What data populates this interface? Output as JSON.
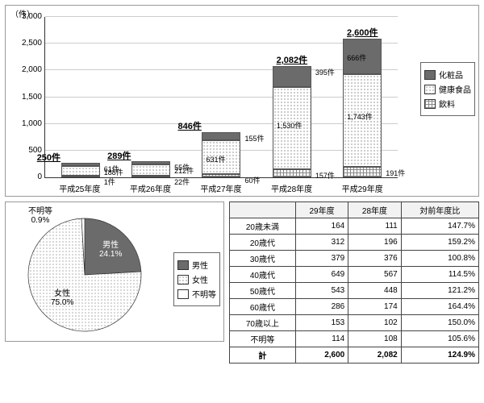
{
  "bar_chart": {
    "type": "stacked-bar",
    "y_unit_label": "（件）",
    "ylim": [
      0,
      3000
    ],
    "ytick_step": 500,
    "yticks": [
      "0",
      "500",
      "1,000",
      "1,500",
      "2,000",
      "2,500",
      "3,000"
    ],
    "categories": [
      "平成25年度",
      "平成26年度",
      "平成27年度",
      "平成28年度",
      "平成29年度"
    ],
    "series": [
      {
        "key": "drink",
        "label": "飲料",
        "fill": "f-drink"
      },
      {
        "key": "health",
        "label": "健康食品",
        "fill": "f-health"
      },
      {
        "key": "cosme",
        "label": "化粧品",
        "fill": "f-cosme"
      }
    ],
    "bars": [
      {
        "total": "250件",
        "total_side": "left",
        "drink": {
          "v": 1,
          "lbl": "1件"
        },
        "health": {
          "v": 188,
          "lbl": "188件"
        },
        "cosme": {
          "v": 61,
          "lbl": "61件"
        }
      },
      {
        "total": "289件",
        "total_side": "left",
        "drink": {
          "v": 22,
          "lbl": "22件"
        },
        "health": {
          "v": 212,
          "lbl": "212件"
        },
        "cosme": {
          "v": 55,
          "lbl": "55件"
        }
      },
      {
        "total": "846件",
        "total_side": "left",
        "drink": {
          "v": 60,
          "lbl": "60件"
        },
        "health": {
          "v": 631,
          "lbl": "631件"
        },
        "cosme": {
          "v": 155,
          "lbl": "155件"
        }
      },
      {
        "total": "2,082件",
        "total_side": "center",
        "drink": {
          "v": 157,
          "lbl": "157件"
        },
        "health": {
          "v": 1530,
          "lbl": "1,530件"
        },
        "cosme": {
          "v": 395,
          "lbl": "395件"
        }
      },
      {
        "total": "2,600件",
        "total_side": "center",
        "drink": {
          "v": 191,
          "lbl": "191件"
        },
        "health": {
          "v": 1743,
          "lbl": "1,743件"
        },
        "cosme": {
          "v": 666,
          "lbl": "666件"
        }
      }
    ],
    "legend_order": [
      "cosme",
      "health",
      "drink"
    ]
  },
  "pie_chart": {
    "type": "pie",
    "slices": [
      {
        "key": "male",
        "label": "男性",
        "pct": "24.1%",
        "value": 24.1,
        "fill": "#6b6b6b",
        "text_color": "#ffffff"
      },
      {
        "key": "female",
        "label": "女性",
        "pct": "75.0%",
        "value": 75.0,
        "fill": "dots",
        "text_color": "#000000"
      },
      {
        "key": "unknown",
        "label": "不明等",
        "pct": "0.9%",
        "value": 0.9,
        "fill": "#ffffff",
        "text_color": "#000000"
      }
    ],
    "legend": [
      "男性",
      "女性",
      "不明等"
    ]
  },
  "table": {
    "columns": [
      "",
      "29年度",
      "28年度",
      "対前年度比"
    ],
    "rows": [
      [
        "20歳未満",
        "164",
        "111",
        "147.7%"
      ],
      [
        "20歳代",
        "312",
        "196",
        "159.2%"
      ],
      [
        "30歳代",
        "379",
        "376",
        "100.8%"
      ],
      [
        "40歳代",
        "649",
        "567",
        "114.5%"
      ],
      [
        "50歳代",
        "543",
        "448",
        "121.2%"
      ],
      [
        "60歳代",
        "286",
        "174",
        "164.4%"
      ],
      [
        "70歳以上",
        "153",
        "102",
        "150.0%"
      ],
      [
        "不明等",
        "114",
        "108",
        "105.6%"
      ]
    ],
    "total_row": [
      "計",
      "2,600",
      "2,082",
      "124.9%"
    ]
  }
}
